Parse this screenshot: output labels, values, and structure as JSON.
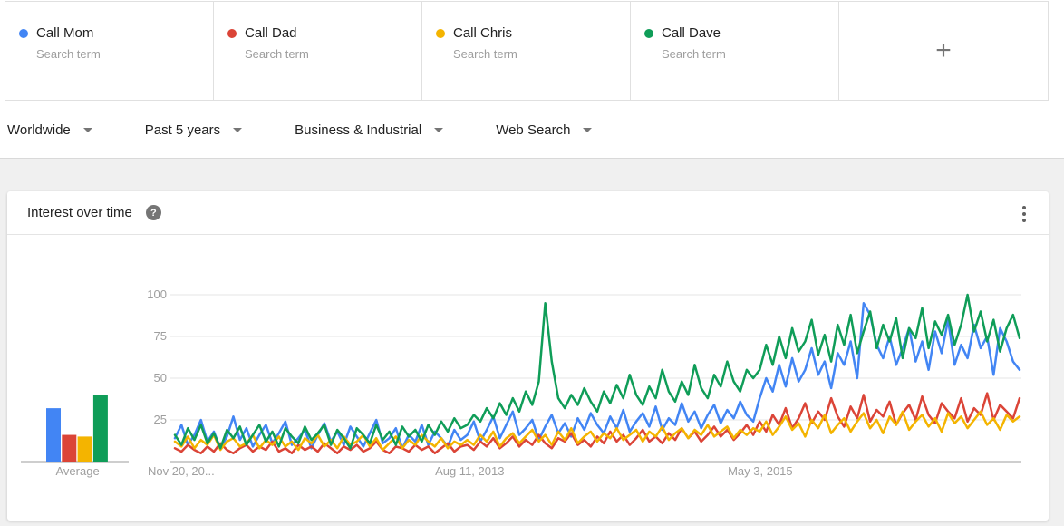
{
  "terms": [
    {
      "label": "Call Mom",
      "type": "Search term",
      "color": "#4285f4"
    },
    {
      "label": "Call Dad",
      "type": "Search term",
      "color": "#db4437"
    },
    {
      "label": "Call Chris",
      "type": "Search term",
      "color": "#f4b400"
    },
    {
      "label": "Call Dave",
      "type": "Search term",
      "color": "#0f9d58"
    }
  ],
  "add_term": {
    "plus_label": "+"
  },
  "filters": [
    {
      "label": "Worldwide"
    },
    {
      "label": "Past 5 years"
    },
    {
      "label": "Business & Industrial"
    },
    {
      "label": "Web Search"
    }
  ],
  "card": {
    "title": "Interest over time",
    "help_label": "?"
  },
  "chart_data": {
    "type": "line",
    "title": "Interest over time",
    "ylabel": "",
    "xlabel": "",
    "ylim": [
      0,
      100
    ],
    "yticks": [
      25,
      50,
      75,
      100
    ],
    "grid": true,
    "xticks": [
      "Nov 20, 20...",
      "Aug 11, 2013",
      "May 3, 2015"
    ],
    "xtick_positions": [
      0,
      0.349,
      0.693
    ],
    "series": [
      {
        "name": "Call Mom",
        "color": "#4285f4",
        "values": [
          14,
          22,
          10,
          16,
          25,
          12,
          18,
          8,
          15,
          27,
          13,
          20,
          9,
          16,
          22,
          11,
          17,
          24,
          10,
          14,
          19,
          8,
          16,
          23,
          12,
          18,
          10,
          21,
          15,
          9,
          17,
          25,
          11,
          14,
          20,
          8,
          16,
          12,
          22,
          10,
          18,
          14,
          9,
          19,
          13,
          16,
          24,
          12,
          19,
          27,
          14,
          22,
          30,
          16,
          20,
          25,
          13,
          21,
          28,
          17,
          23,
          15,
          26,
          19,
          29,
          22,
          17,
          27,
          20,
          31,
          18,
          24,
          29,
          21,
          33,
          19,
          26,
          22,
          35,
          24,
          30,
          20,
          28,
          34,
          23,
          31,
          26,
          36,
          28,
          24,
          38,
          50,
          42,
          58,
          45,
          62,
          48,
          55,
          68,
          52,
          60,
          44,
          65,
          58,
          72,
          50,
          95,
          88,
          70,
          62,
          75,
          58,
          68,
          80,
          60,
          72,
          55,
          78,
          65,
          85,
          58,
          70,
          62,
          82,
          68,
          75,
          52,
          80,
          72,
          60,
          55
        ]
      },
      {
        "name": "Call Dad",
        "color": "#db4437",
        "values": [
          8,
          6,
          10,
          7,
          5,
          9,
          6,
          11,
          7,
          5,
          8,
          10,
          6,
          9,
          7,
          12,
          6,
          8,
          5,
          10,
          7,
          9,
          6,
          11,
          8,
          5,
          9,
          7,
          10,
          6,
          8,
          12,
          7,
          5,
          9,
          8,
          6,
          10,
          7,
          9,
          5,
          8,
          11,
          6,
          9,
          10,
          7,
          12,
          9,
          14,
          8,
          11,
          15,
          9,
          13,
          10,
          16,
          11,
          8,
          14,
          12,
          17,
          10,
          13,
          9,
          15,
          11,
          18,
          12,
          16,
          10,
          14,
          19,
          12,
          15,
          11,
          17,
          13,
          20,
          14,
          18,
          12,
          16,
          21,
          15,
          19,
          13,
          17,
          22,
          16,
          24,
          18,
          28,
          22,
          32,
          20,
          26,
          35,
          23,
          30,
          25,
          38,
          27,
          21,
          33,
          26,
          40,
          24,
          31,
          27,
          36,
          22,
          29,
          34,
          25,
          39,
          28,
          23,
          35,
          30,
          26,
          38,
          24,
          32,
          28,
          41,
          25,
          34,
          30,
          26,
          38
        ]
      },
      {
        "name": "Call Chris",
        "color": "#f4b400",
        "values": [
          12,
          9,
          15,
          8,
          13,
          10,
          16,
          7,
          12,
          14,
          9,
          11,
          16,
          8,
          13,
          10,
          15,
          9,
          12,
          7,
          14,
          11,
          16,
          9,
          13,
          8,
          15,
          10,
          12,
          16,
          9,
          14,
          7,
          11,
          15,
          8,
          13,
          10,
          16,
          12,
          9,
          14,
          8,
          12,
          10,
          13,
          10,
          16,
          12,
          18,
          9,
          14,
          17,
          11,
          15,
          19,
          12,
          16,
          10,
          18,
          13,
          20,
          11,
          15,
          18,
          12,
          17,
          14,
          20,
          13,
          16,
          19,
          12,
          18,
          15,
          21,
          13,
          17,
          20,
          14,
          19,
          16,
          22,
          15,
          18,
          21,
          14,
          19,
          16,
          20,
          18,
          24,
          16,
          21,
          27,
          19,
          23,
          15,
          25,
          20,
          28,
          17,
          22,
          26,
          18,
          24,
          29,
          20,
          25,
          17,
          27,
          22,
          30,
          19,
          24,
          28,
          21,
          26,
          18,
          29,
          23,
          27,
          20,
          25,
          30,
          22,
          26,
          19,
          28,
          24,
          27
        ]
      },
      {
        "name": "Call Dave",
        "color": "#0f9d58",
        "values": [
          16,
          10,
          20,
          13,
          22,
          11,
          17,
          8,
          19,
          14,
          21,
          10,
          16,
          22,
          12,
          18,
          9,
          20,
          15,
          11,
          21,
          13,
          17,
          22,
          10,
          19,
          14,
          8,
          20,
          16,
          11,
          22,
          13,
          18,
          10,
          21,
          15,
          19,
          12,
          22,
          16,
          24,
          18,
          26,
          20,
          22,
          28,
          24,
          32,
          26,
          35,
          28,
          38,
          30,
          42,
          34,
          48,
          95,
          60,
          38,
          32,
          40,
          34,
          44,
          36,
          30,
          42,
          35,
          46,
          38,
          52,
          40,
          34,
          45,
          38,
          55,
          42,
          36,
          48,
          40,
          58,
          44,
          38,
          52,
          45,
          60,
          48,
          42,
          55,
          50,
          55,
          70,
          58,
          75,
          62,
          80,
          66,
          72,
          85,
          64,
          76,
          60,
          82,
          70,
          88,
          65,
          78,
          90,
          68,
          82,
          72,
          86,
          62,
          80,
          74,
          92,
          68,
          84,
          76,
          88,
          70,
          82,
          100,
          78,
          90,
          72,
          85,
          66,
          80,
          88,
          74
        ]
      }
    ],
    "average_chart": {
      "type": "bar",
      "label": "Average",
      "categories": [
        "Call Mom",
        "Call Dad",
        "Call Chris",
        "Call Dave"
      ],
      "values": [
        32,
        16,
        15,
        40
      ]
    }
  }
}
